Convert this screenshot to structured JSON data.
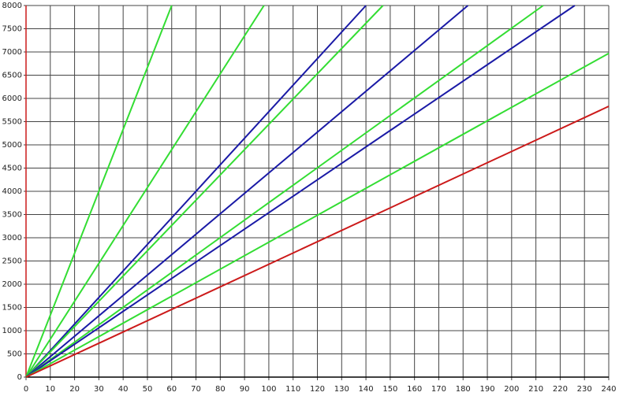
{
  "chart_data": {
    "type": "line",
    "xlim": [
      0,
      240
    ],
    "ylim": [
      0,
      8000
    ],
    "xticks": [
      0,
      10,
      20,
      30,
      40,
      50,
      60,
      70,
      80,
      90,
      100,
      110,
      120,
      130,
      140,
      150,
      160,
      170,
      180,
      190,
      200,
      210,
      220,
      230,
      240
    ],
    "yticks": [
      0,
      500,
      1000,
      1500,
      2000,
      2500,
      3000,
      3500,
      4000,
      4500,
      5000,
      5500,
      6000,
      6500,
      7000,
      7500,
      8000
    ],
    "grid": true,
    "series": [
      {
        "color": "#33dd33",
        "x": [
          0,
          60
        ],
        "values": [
          0,
          8000
        ]
      },
      {
        "color": "#33dd33",
        "x": [
          0,
          98
        ],
        "values": [
          0,
          8000
        ]
      },
      {
        "color": "#1a1aa6",
        "x": [
          0,
          140
        ],
        "values": [
          0,
          8000
        ]
      },
      {
        "color": "#33dd33",
        "x": [
          0,
          147
        ],
        "values": [
          0,
          8000
        ]
      },
      {
        "color": "#1a1aa6",
        "x": [
          0,
          182
        ],
        "values": [
          0,
          8000
        ]
      },
      {
        "color": "#33dd33",
        "x": [
          0,
          213
        ],
        "values": [
          0,
          8000
        ]
      },
      {
        "color": "#1a1aa6",
        "x": [
          0,
          226
        ],
        "values": [
          0,
          8000
        ]
      },
      {
        "color": "#33dd33",
        "x": [
          0,
          240
        ],
        "values": [
          0,
          6970
        ]
      },
      {
        "color": "#cc1a1a",
        "x": [
          0,
          240
        ],
        "values": [
          0,
          5830
        ]
      }
    ]
  }
}
